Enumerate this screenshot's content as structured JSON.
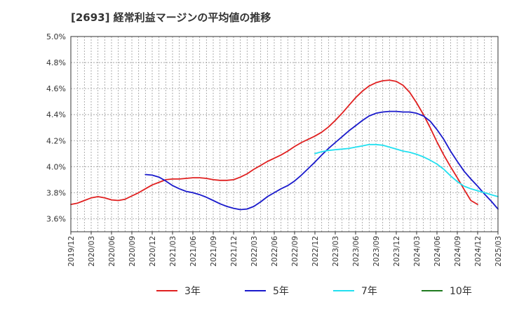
{
  "chart_data": {
    "type": "line",
    "title": "[2693]  経常利益マージンの平均値の推移",
    "xlabel": "",
    "ylabel": "",
    "ylim": [
      3.5,
      5.0
    ],
    "y_ticks": [
      "5.0%",
      "4.8%",
      "4.6%",
      "4.4%",
      "4.2%",
      "4.0%",
      "3.8%",
      "3.6%"
    ],
    "x_ticks": [
      "2019/12",
      "2020/03",
      "2020/06",
      "2020/09",
      "2020/12",
      "2021/03",
      "2021/06",
      "2021/09",
      "2021/12",
      "2022/03",
      "2022/06",
      "2022/09",
      "2022/12",
      "2023/03",
      "2023/06",
      "2023/09",
      "2023/12",
      "2024/03",
      "2024/06",
      "2024/09",
      "2024/12",
      "2025/03"
    ],
    "grid": true,
    "legend_position": "bottom",
    "series": [
      {
        "name": "3年",
        "color": "#e02020",
        "points": [
          [
            "2019/12",
            3.71
          ],
          [
            "2020/01",
            3.72
          ],
          [
            "2020/02",
            3.74
          ],
          [
            "2020/03",
            3.76
          ],
          [
            "2020/04",
            3.77
          ],
          [
            "2020/05",
            3.76
          ],
          [
            "2020/06",
            3.745
          ],
          [
            "2020/07",
            3.74
          ],
          [
            "2020/08",
            3.75
          ],
          [
            "2020/09",
            3.775
          ],
          [
            "2020/10",
            3.8
          ],
          [
            "2020/11",
            3.83
          ],
          [
            "2020/12",
            3.86
          ],
          [
            "2021/01",
            3.88
          ],
          [
            "2021/02",
            3.9
          ],
          [
            "2021/03",
            3.905
          ],
          [
            "2021/04",
            3.905
          ],
          [
            "2021/05",
            3.91
          ],
          [
            "2021/06",
            3.915
          ],
          [
            "2021/07",
            3.915
          ],
          [
            "2021/08",
            3.91
          ],
          [
            "2021/09",
            3.9
          ],
          [
            "2021/10",
            3.895
          ],
          [
            "2021/11",
            3.895
          ],
          [
            "2021/12",
            3.9
          ],
          [
            "2022/01",
            3.92
          ],
          [
            "2022/02",
            3.945
          ],
          [
            "2022/03",
            3.98
          ],
          [
            "2022/04",
            4.01
          ],
          [
            "2022/05",
            4.04
          ],
          [
            "2022/06",
            4.065
          ],
          [
            "2022/07",
            4.09
          ],
          [
            "2022/08",
            4.12
          ],
          [
            "2022/09",
            4.155
          ],
          [
            "2022/10",
            4.185
          ],
          [
            "2022/11",
            4.21
          ],
          [
            "2022/12",
            4.235
          ],
          [
            "2023/01",
            4.265
          ],
          [
            "2023/02",
            4.305
          ],
          [
            "2023/03",
            4.355
          ],
          [
            "2023/04",
            4.41
          ],
          [
            "2023/05",
            4.47
          ],
          [
            "2023/06",
            4.53
          ],
          [
            "2023/07",
            4.58
          ],
          [
            "2023/08",
            4.62
          ],
          [
            "2023/09",
            4.645
          ],
          [
            "2023/10",
            4.66
          ],
          [
            "2023/11",
            4.665
          ],
          [
            "2023/12",
            4.655
          ],
          [
            "2024/01",
            4.625
          ],
          [
            "2024/02",
            4.57
          ],
          [
            "2024/03",
            4.49
          ],
          [
            "2024/04",
            4.4
          ],
          [
            "2024/05",
            4.3
          ],
          [
            "2024/06",
            4.19
          ],
          [
            "2024/07",
            4.09
          ],
          [
            "2024/08",
            4.0
          ],
          [
            "2024/09",
            3.915
          ],
          [
            "2024/10",
            3.825
          ],
          [
            "2024/11",
            3.74
          ],
          [
            "2024/12",
            3.71
          ]
        ]
      },
      {
        "name": "5年",
        "color": "#1a1acc",
        "points": [
          [
            "2020/11",
            3.94
          ],
          [
            "2020/12",
            3.935
          ],
          [
            "2021/01",
            3.92
          ],
          [
            "2021/02",
            3.89
          ],
          [
            "2021/03",
            3.855
          ],
          [
            "2021/04",
            3.83
          ],
          [
            "2021/05",
            3.81
          ],
          [
            "2021/06",
            3.8
          ],
          [
            "2021/07",
            3.785
          ],
          [
            "2021/08",
            3.765
          ],
          [
            "2021/09",
            3.74
          ],
          [
            "2021/10",
            3.715
          ],
          [
            "2021/11",
            3.695
          ],
          [
            "2021/12",
            3.68
          ],
          [
            "2022/01",
            3.67
          ],
          [
            "2022/02",
            3.675
          ],
          [
            "2022/03",
            3.695
          ],
          [
            "2022/04",
            3.73
          ],
          [
            "2022/05",
            3.77
          ],
          [
            "2022/06",
            3.8
          ],
          [
            "2022/07",
            3.83
          ],
          [
            "2022/08",
            3.855
          ],
          [
            "2022/09",
            3.89
          ],
          [
            "2022/10",
            3.935
          ],
          [
            "2022/11",
            3.985
          ],
          [
            "2022/12",
            4.035
          ],
          [
            "2023/01",
            4.09
          ],
          [
            "2023/02",
            4.14
          ],
          [
            "2023/03",
            4.185
          ],
          [
            "2023/04",
            4.23
          ],
          [
            "2023/05",
            4.275
          ],
          [
            "2023/06",
            4.315
          ],
          [
            "2023/07",
            4.355
          ],
          [
            "2023/08",
            4.39
          ],
          [
            "2023/09",
            4.41
          ],
          [
            "2023/10",
            4.42
          ],
          [
            "2023/11",
            4.425
          ],
          [
            "2023/12",
            4.425
          ],
          [
            "2024/01",
            4.42
          ],
          [
            "2024/02",
            4.42
          ],
          [
            "2024/03",
            4.41
          ],
          [
            "2024/04",
            4.39
          ],
          [
            "2024/05",
            4.35
          ],
          [
            "2024/06",
            4.285
          ],
          [
            "2024/07",
            4.21
          ],
          [
            "2024/08",
            4.12
          ],
          [
            "2024/09",
            4.04
          ],
          [
            "2024/10",
            3.965
          ],
          [
            "2024/11",
            3.905
          ],
          [
            "2024/12",
            3.85
          ],
          [
            "2025/01",
            3.79
          ],
          [
            "2025/02",
            3.735
          ],
          [
            "2025/03",
            3.675
          ]
        ]
      },
      {
        "name": "7年",
        "color": "#22e0f0",
        "points": [
          [
            "2022/12",
            4.1
          ],
          [
            "2023/01",
            4.115
          ],
          [
            "2023/02",
            4.125
          ],
          [
            "2023/03",
            4.13
          ],
          [
            "2023/04",
            4.135
          ],
          [
            "2023/05",
            4.14
          ],
          [
            "2023/06",
            4.15
          ],
          [
            "2023/07",
            4.16
          ],
          [
            "2023/08",
            4.17
          ],
          [
            "2023/09",
            4.17
          ],
          [
            "2023/10",
            4.165
          ],
          [
            "2023/11",
            4.15
          ],
          [
            "2023/12",
            4.135
          ],
          [
            "2024/01",
            4.12
          ],
          [
            "2024/02",
            4.11
          ],
          [
            "2024/03",
            4.095
          ],
          [
            "2024/04",
            4.075
          ],
          [
            "2024/05",
            4.05
          ],
          [
            "2024/06",
            4.02
          ],
          [
            "2024/07",
            3.98
          ],
          [
            "2024/08",
            3.93
          ],
          [
            "2024/09",
            3.885
          ],
          [
            "2024/10",
            3.85
          ],
          [
            "2024/11",
            3.83
          ],
          [
            "2024/12",
            3.815
          ],
          [
            "2025/01",
            3.8
          ],
          [
            "2025/02",
            3.785
          ],
          [
            "2025/03",
            3.77
          ]
        ]
      },
      {
        "name": "10年",
        "color": "#1f7a1f",
        "points": []
      }
    ]
  }
}
